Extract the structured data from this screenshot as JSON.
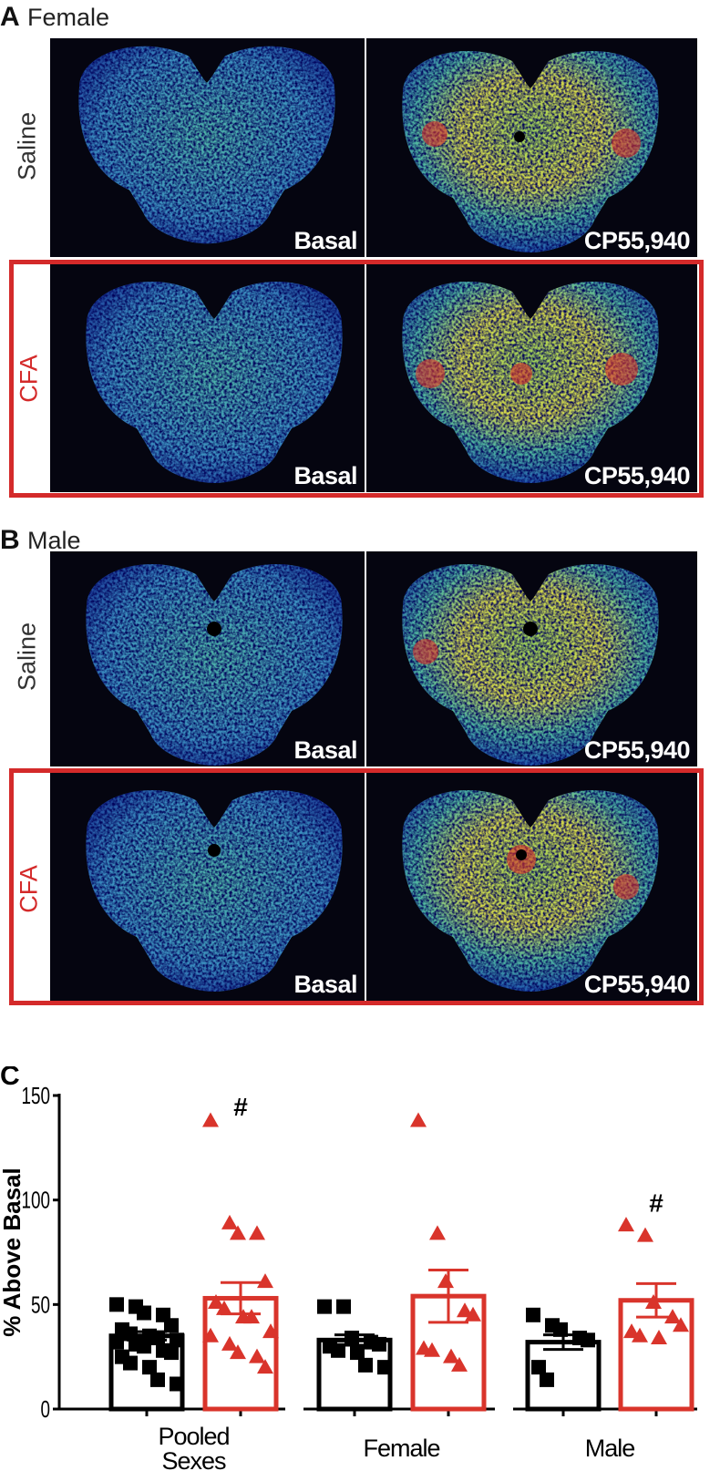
{
  "panel_a": {
    "letter": "A",
    "sex": "Female",
    "rows": [
      {
        "label": "Saline",
        "images": [
          "Basal",
          "CP55,940"
        ]
      },
      {
        "label": "CFA",
        "images": [
          "Basal",
          "CP55,940"
        ]
      }
    ]
  },
  "panel_b": {
    "letter": "B",
    "sex": "Male",
    "rows": [
      {
        "label": "Saline",
        "images": [
          "Basal",
          "CP55,940"
        ]
      },
      {
        "label": "CFA",
        "images": [
          "Basal",
          "CP55,940"
        ]
      }
    ]
  },
  "colors": {
    "saline": "#000000",
    "cfa": "#d9342b",
    "box": "#d42a2a"
  },
  "chart_data": {
    "type": "bar",
    "panel_letter": "C",
    "ylabel": "% Above Basal",
    "ylim": [
      0,
      150
    ],
    "yticks": [
      "0",
      "50",
      "100",
      "150"
    ],
    "categories": [
      "Pooled Sexes",
      "Female",
      "Male"
    ],
    "category_lines": [
      [
        "Pooled",
        "Sexes"
      ],
      [
        "Female"
      ],
      [
        "Male"
      ]
    ],
    "series": [
      {
        "name": "Saline",
        "marker": "square",
        "means": [
          35,
          33,
          32
        ],
        "sem": [
          2,
          2.5,
          3.5
        ],
        "points": [
          [
            50,
            49,
            46,
            45,
            40,
            38,
            36,
            35,
            34,
            33,
            32,
            31,
            30,
            28,
            27,
            25,
            22,
            20,
            14,
            12
          ],
          [
            49,
            49,
            34,
            32,
            31,
            30,
            28,
            27,
            21,
            20
          ],
          [
            45,
            40,
            38,
            34,
            33,
            20,
            14
          ]
        ]
      },
      {
        "name": "CFA",
        "marker": "triangle",
        "means": [
          53,
          54,
          52
        ],
        "sem": [
          7.5,
          12.5,
          8
        ],
        "points": [
          [
            138,
            89,
            84,
            84,
            61,
            51,
            48,
            44,
            44,
            37,
            35,
            31,
            27,
            25,
            20
          ],
          [
            138,
            84,
            61,
            47,
            45,
            29,
            28,
            25,
            21
          ],
          [
            88,
            83,
            51,
            44,
            40,
            37,
            35,
            34
          ]
        ]
      }
    ],
    "annotations": [
      {
        "text": "#",
        "category": "Pooled Sexes",
        "series": "CFA",
        "y": 150
      },
      {
        "text": "#",
        "category": "Male",
        "series": "CFA",
        "y": 104
      }
    ]
  }
}
